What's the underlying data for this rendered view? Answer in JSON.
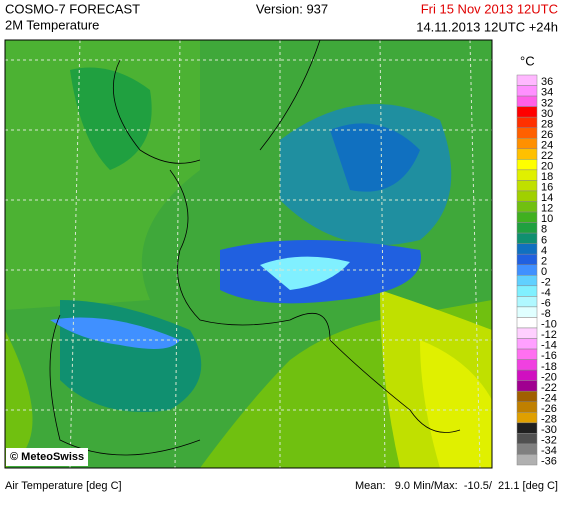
{
  "header": {
    "title": "COSMO-7 FORECAST",
    "subtitle": "2M Temperature",
    "version": "Version: 937",
    "valid": "Fri 15 Nov 2013 12UTC",
    "run": "14.11.2013 12UTC +24h"
  },
  "legend": {
    "unit": "°C",
    "items": [
      {
        "value": 36,
        "color": "#ffb8ff"
      },
      {
        "value": 34,
        "color": "#ff90ff"
      },
      {
        "value": 32,
        "color": "#ff60e8"
      },
      {
        "value": 30,
        "color": "#ff0000"
      },
      {
        "value": 28,
        "color": "#ff3000"
      },
      {
        "value": 26,
        "color": "#ff6000"
      },
      {
        "value": 24,
        "color": "#ff9000"
      },
      {
        "value": 22,
        "color": "#ffc000"
      },
      {
        "value": 20,
        "color": "#ffff00"
      },
      {
        "value": 18,
        "color": "#e0f000"
      },
      {
        "value": 16,
        "color": "#c0e000"
      },
      {
        "value": 14,
        "color": "#a0d000"
      },
      {
        "value": 12,
        "color": "#70c010"
      },
      {
        "value": 10,
        "color": "#40b020"
      },
      {
        "value": 8,
        "color": "#20a040"
      },
      {
        "value": 6,
        "color": "#109070"
      },
      {
        "value": 4,
        "color": "#1070c0"
      },
      {
        "value": 2,
        "color": "#2060e0"
      },
      {
        "value": 0,
        "color": "#4090ff"
      },
      {
        "value": -2,
        "color": "#60d0ff"
      },
      {
        "value": -4,
        "color": "#80f0ff"
      },
      {
        "value": -6,
        "color": "#b0f8ff"
      },
      {
        "value": -8,
        "color": "#e0ffff"
      },
      {
        "value": -10,
        "color": "#ffffff"
      },
      {
        "value": -12,
        "color": "#ffd0ff"
      },
      {
        "value": -14,
        "color": "#ffa0ff"
      },
      {
        "value": -16,
        "color": "#ff70f0"
      },
      {
        "value": -18,
        "color": "#f040e0"
      },
      {
        "value": -20,
        "color": "#d010c0"
      },
      {
        "value": -22,
        "color": "#a00090"
      },
      {
        "value": -24,
        "color": "#a06000"
      },
      {
        "value": -26,
        "color": "#c08000"
      },
      {
        "value": -28,
        "color": "#e0a000"
      },
      {
        "value": -30,
        "color": "#202020"
      },
      {
        "value": -32,
        "color": "#505050"
      },
      {
        "value": -34,
        "color": "#808080"
      },
      {
        "value": -36,
        "color": "#b0b0b0"
      }
    ]
  },
  "credit": "© MeteoSwiss",
  "footer": {
    "field": "Air Temperature [deg C]",
    "stats": "Mean:   9.0 Min/Max:  -10.5/  21.1 [deg C]"
  }
}
